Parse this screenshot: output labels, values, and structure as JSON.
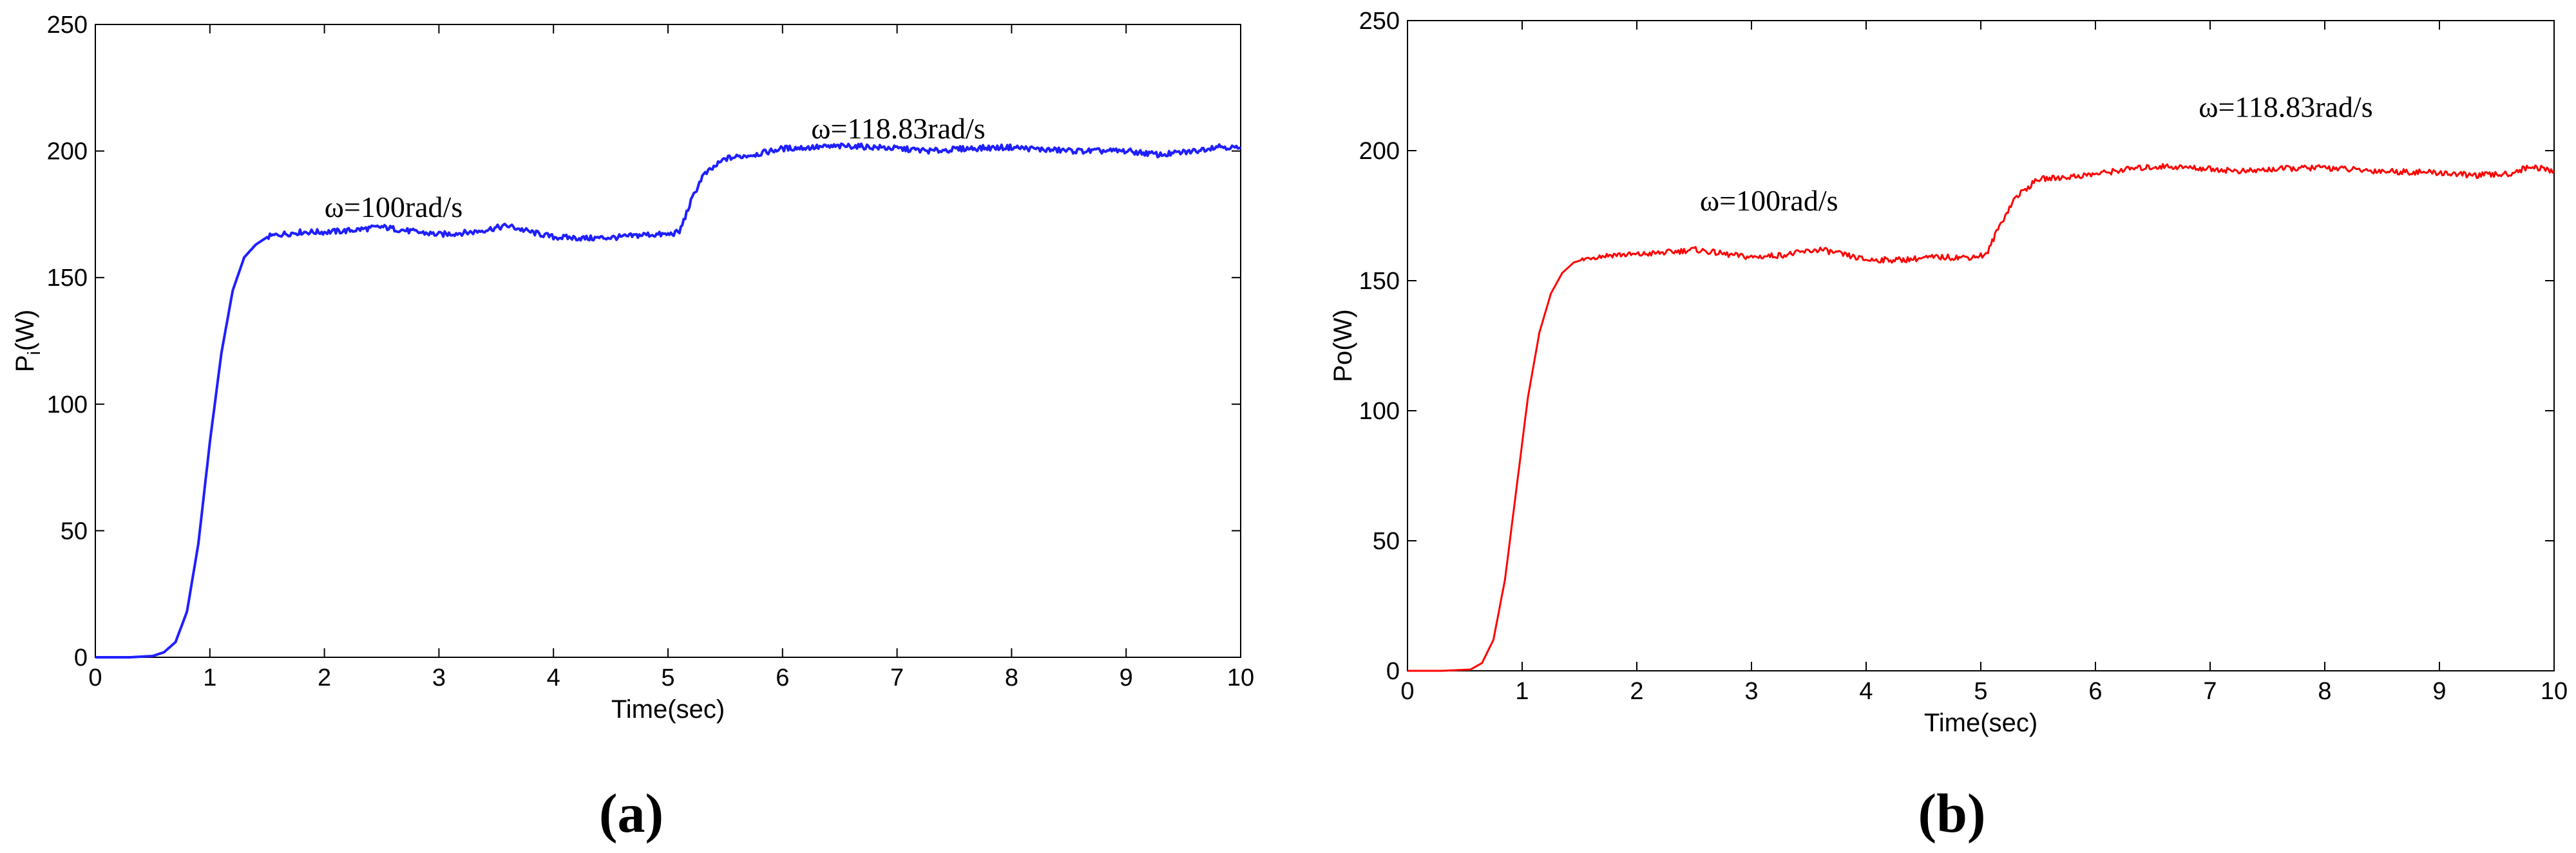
{
  "chart_data": [
    {
      "type": "line",
      "panel_label": "(a)",
      "xlabel": "Time(sec)",
      "ylabel": "P",
      "ylabel_sub": "i",
      "ylabel_suffix": "(W)",
      "xlim": [
        0,
        10
      ],
      "ylim": [
        0,
        250
      ],
      "xticks": [
        0,
        1,
        2,
        3,
        4,
        5,
        6,
        7,
        8,
        9,
        10
      ],
      "yticks": [
        0,
        50,
        100,
        150,
        200,
        250
      ],
      "grid": false,
      "series": [
        {
          "color": "#1f1fff",
          "points": [
            [
              0,
              0
            ],
            [
              0.3,
              0
            ],
            [
              0.5,
              0.5
            ],
            [
              0.6,
              2
            ],
            [
              0.7,
              6
            ],
            [
              0.8,
              18
            ],
            [
              0.9,
              45
            ],
            [
              1.0,
              85
            ],
            [
              1.1,
              120
            ],
            [
              1.2,
              145
            ],
            [
              1.3,
              158
            ],
            [
              1.4,
              163
            ],
            [
              1.5,
              166
            ],
            [
              1.6,
              167
            ],
            [
              1.8,
              168
            ],
            [
              2.0,
              168
            ],
            [
              2.2,
              168.5
            ],
            [
              2.5,
              170
            ],
            [
              2.8,
              168
            ],
            [
              3.0,
              167
            ],
            [
              3.3,
              168
            ],
            [
              3.6,
              170.5
            ],
            [
              3.8,
              168
            ],
            [
              4.0,
              166
            ],
            [
              4.3,
              165.5
            ],
            [
              4.6,
              166
            ],
            [
              4.8,
              167
            ],
            [
              5.0,
              167
            ],
            [
              5.1,
              168
            ],
            [
              5.2,
              180
            ],
            [
              5.3,
              190
            ],
            [
              5.5,
              197
            ],
            [
              5.8,
              199
            ],
            [
              6.0,
              201
            ],
            [
              6.3,
              201.5
            ],
            [
              6.6,
              202
            ],
            [
              7.0,
              201
            ],
            [
              7.3,
              200
            ],
            [
              7.6,
              201
            ],
            [
              8.0,
              201.5
            ],
            [
              8.3,
              200.5
            ],
            [
              8.6,
              200
            ],
            [
              9.0,
              200
            ],
            [
              9.3,
              198.5
            ],
            [
              9.6,
              200
            ],
            [
              9.8,
              202
            ],
            [
              10.0,
              201
            ]
          ]
        }
      ],
      "annotations": [
        {
          "text": "ω=100rad/s",
          "x": 2.0,
          "y": 174
        },
        {
          "text": "ω=118.83rad/s",
          "x": 6.25,
          "y": 205
        }
      ]
    },
    {
      "type": "line",
      "panel_label": "(b)",
      "xlabel": "Time(sec)",
      "ylabel": "Po(W)",
      "ylabel_sub": "",
      "ylabel_suffix": "",
      "xlim": [
        0,
        10
      ],
      "ylim": [
        0,
        250
      ],
      "xticks": [
        0,
        1,
        2,
        3,
        4,
        5,
        6,
        7,
        8,
        9,
        10
      ],
      "yticks": [
        0,
        50,
        100,
        150,
        200,
        250
      ],
      "grid": false,
      "series": [
        {
          "color": "#ff0000",
          "points": [
            [
              0,
              0
            ],
            [
              0.3,
              0
            ],
            [
              0.55,
              0.5
            ],
            [
              0.65,
              3
            ],
            [
              0.75,
              12
            ],
            [
              0.85,
              35
            ],
            [
              0.95,
              70
            ],
            [
              1.05,
              105
            ],
            [
              1.15,
              130
            ],
            [
              1.25,
              145
            ],
            [
              1.35,
              153
            ],
            [
              1.45,
              157
            ],
            [
              1.6,
              159
            ],
            [
              1.8,
              160
            ],
            [
              2.0,
              160
            ],
            [
              2.3,
              161
            ],
            [
              2.5,
              162
            ],
            [
              2.8,
              160
            ],
            [
              3.0,
              159
            ],
            [
              3.3,
              160
            ],
            [
              3.6,
              162
            ],
            [
              3.8,
              160
            ],
            [
              4.0,
              158
            ],
            [
              4.3,
              158
            ],
            [
              4.6,
              159
            ],
            [
              4.9,
              159
            ],
            [
              5.05,
              160
            ],
            [
              5.15,
              170
            ],
            [
              5.3,
              182
            ],
            [
              5.5,
              189
            ],
            [
              5.8,
              190
            ],
            [
              6.0,
              191
            ],
            [
              6.3,
              193
            ],
            [
              6.6,
              194
            ],
            [
              7.0,
              193
            ],
            [
              7.3,
              192
            ],
            [
              7.6,
              193
            ],
            [
              8.0,
              193.5
            ],
            [
              8.3,
              192.5
            ],
            [
              8.6,
              192
            ],
            [
              9.0,
              191.5
            ],
            [
              9.3,
              190.5
            ],
            [
              9.6,
              191
            ],
            [
              9.8,
              194
            ],
            [
              10.0,
              192
            ]
          ]
        }
      ],
      "annotations": [
        {
          "text": "ω=100rad/s",
          "x": 2.55,
          "y": 177
        },
        {
          "text": "ω=118.83rad/s",
          "x": 6.9,
          "y": 213
        }
      ]
    }
  ]
}
